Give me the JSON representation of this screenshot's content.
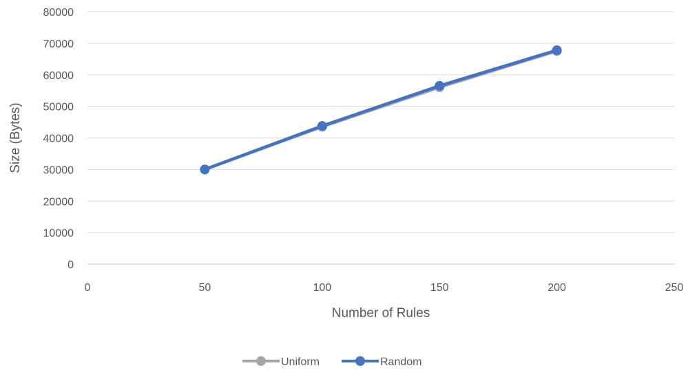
{
  "chart_data": {
    "type": "line",
    "title": "",
    "xlabel": "Number of Rules",
    "ylabel": "Size (Bytes)",
    "xlim": [
      0,
      250
    ],
    "ylim": [
      0,
      80000
    ],
    "x_ticks": [
      0,
      50,
      100,
      150,
      200,
      250
    ],
    "y_ticks": [
      0,
      10000,
      20000,
      30000,
      40000,
      50000,
      60000,
      70000,
      80000
    ],
    "grid": "horizontal",
    "legend_position": "bottom",
    "series": [
      {
        "name": "Uniform",
        "color": "#a5a5a5",
        "x": [
          50,
          100,
          150,
          200
        ],
        "y": [
          30000,
          43500,
          56000,
          67500
        ]
      },
      {
        "name": "Random",
        "color": "#4472c4",
        "x": [
          50,
          100,
          150,
          200
        ],
        "y": [
          30000,
          43800,
          56500,
          67800
        ]
      }
    ]
  }
}
